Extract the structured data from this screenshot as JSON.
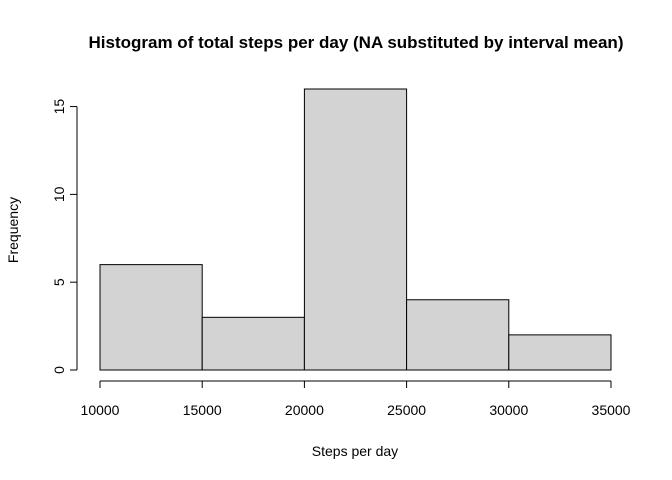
{
  "chart_data": {
    "type": "bar",
    "title": "Histogram of total steps per day (NA substituted by interval mean)",
    "xlabel": "Steps per day",
    "ylabel": "Frequency",
    "bins": [
      {
        "start": 10000,
        "end": 15000,
        "count": 6
      },
      {
        "start": 15000,
        "end": 20000,
        "count": 3
      },
      {
        "start": 20000,
        "end": 25000,
        "count": 16
      },
      {
        "start": 25000,
        "end": 30000,
        "count": 4
      },
      {
        "start": 30000,
        "end": 35000,
        "count": 2
      }
    ],
    "x_ticks": [
      10000,
      15000,
      20000,
      25000,
      30000,
      35000
    ],
    "y_ticks": [
      0,
      5,
      10,
      15
    ],
    "xlim": [
      10000,
      35000
    ],
    "ylim": [
      0,
      16
    ],
    "bar_color": "#d3d3d3",
    "edge_color": "#000000",
    "grid": false
  }
}
